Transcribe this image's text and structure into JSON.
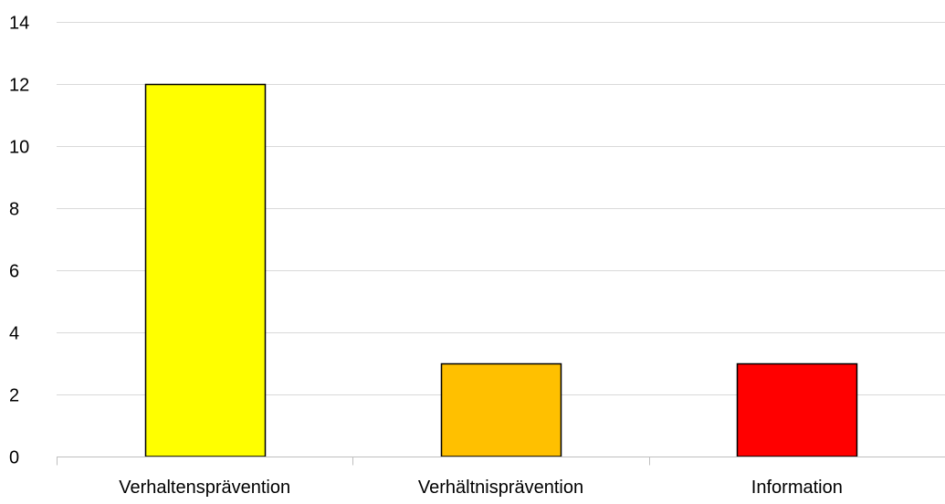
{
  "chart_data": {
    "type": "bar",
    "categories": [
      "Verhaltensprävention",
      "Verhältnisprävention",
      "Information"
    ],
    "values": [
      12,
      3,
      3
    ],
    "colors": [
      "#ffff00",
      "#ffc000",
      "#ff0000"
    ],
    "title": "",
    "xlabel": "",
    "ylabel": "",
    "ylim": [
      0,
      14
    ],
    "yticks": [
      0,
      2,
      4,
      6,
      8,
      10,
      12,
      14
    ],
    "grid": true,
    "legend": "none",
    "bar_edge_color": "#000000",
    "gridline_color": "#d9d9d9",
    "axis_color": "#bfbfbf"
  }
}
